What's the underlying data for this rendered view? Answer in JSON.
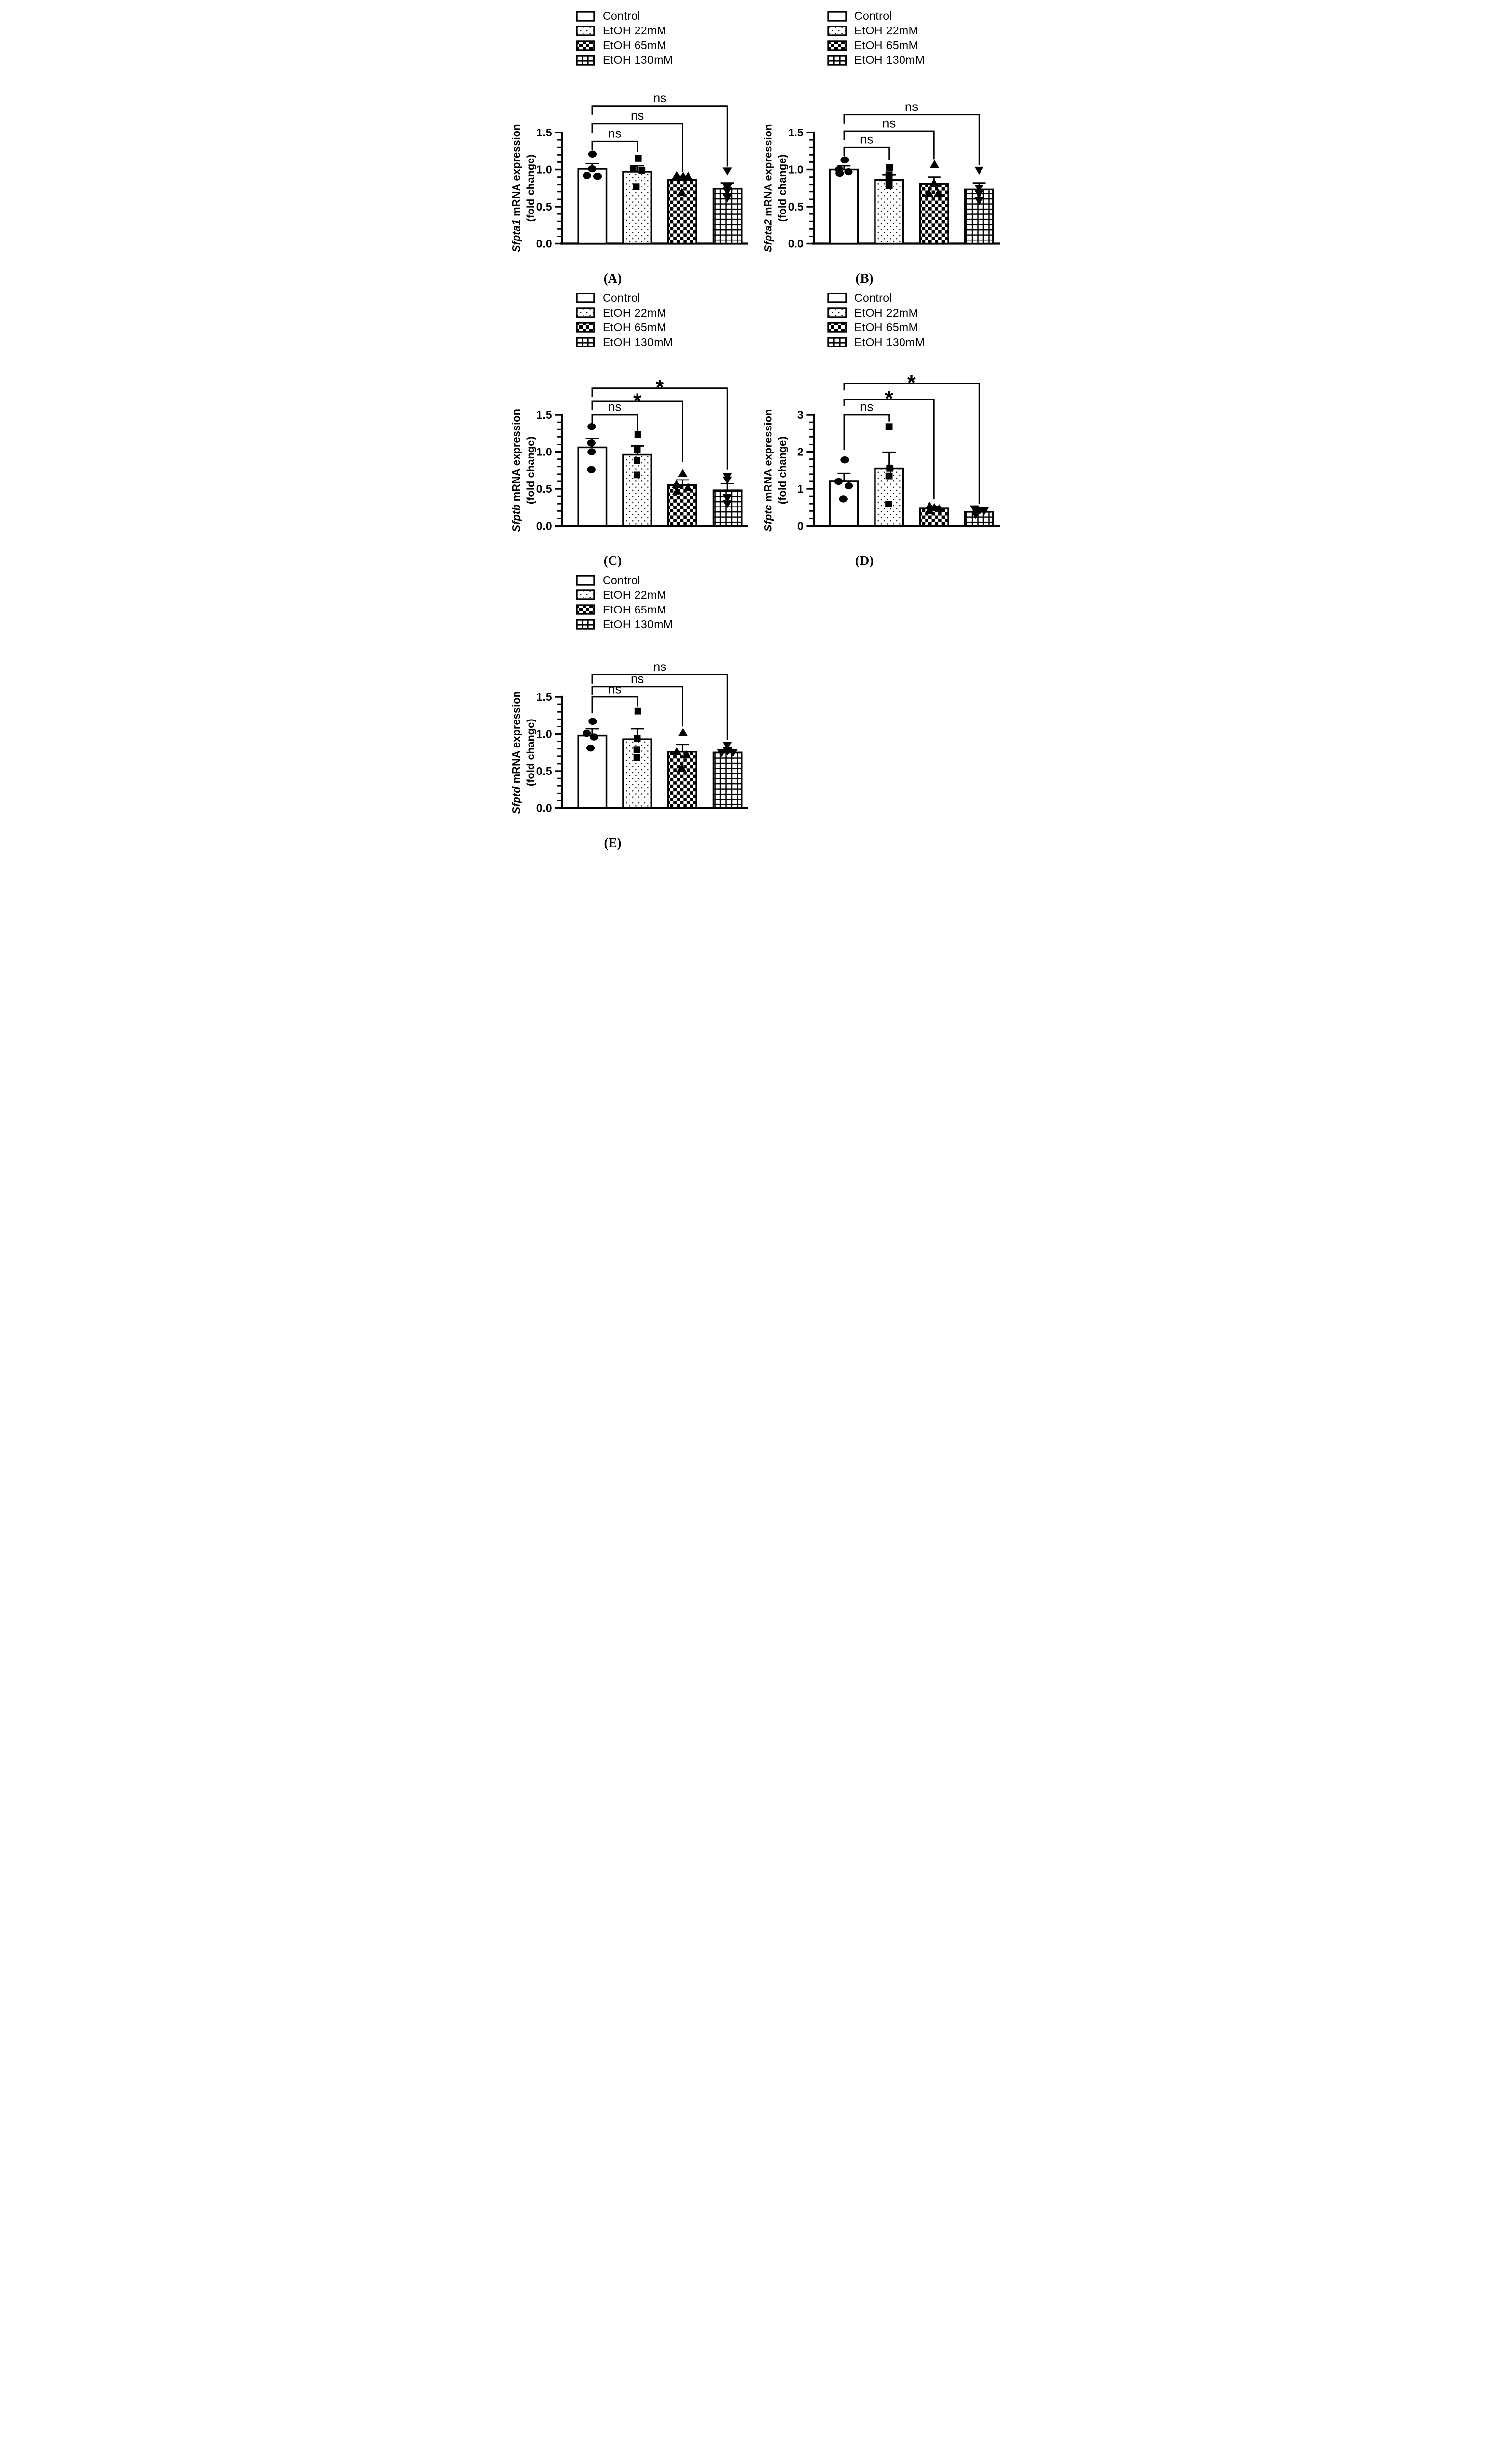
{
  "page": {
    "background": "#ffffff",
    "ink": "#000000"
  },
  "chart_data": [
    {
      "id": "A",
      "caption": "(A)",
      "type": "bar",
      "ylabel_gene": "Sfpta1",
      "ylabel_text": " mRNA expression",
      "ylabel_line2": "(fold change)",
      "ymax": 1.5,
      "ymajor": 0.5,
      "yminor": 0.1,
      "ytick_labels": [
        "0.0",
        "0.5",
        "1.0",
        "1.5"
      ],
      "categories": [
        "Control",
        "EtOH 22mM",
        "EtOH 65mM",
        "EtOH 130mM"
      ],
      "patterns": [
        "open",
        "dots",
        "checker",
        "grid"
      ],
      "markers": [
        "circle",
        "square",
        "triangle-up",
        "triangle-down"
      ],
      "means": [
        1.01,
        0.97,
        0.86,
        0.74
      ],
      "sem_tops": [
        1.08,
        1.05,
        0.91,
        0.82
      ],
      "points": [
        [
          [
            1.21,
            0.02
          ],
          [
            1.01,
            0
          ],
          [
            0.92,
            -0.4
          ],
          [
            0.91,
            0.4
          ]
        ],
        [
          [
            1.15,
            0.08
          ],
          [
            1.01,
            -0.33
          ],
          [
            0.99,
            0.36
          ],
          [
            0.77,
            -0.08
          ]
        ],
        [
          [
            0.92,
            -0.42
          ],
          [
            0.91,
            0.05
          ],
          [
            0.91,
            0.44
          ],
          [
            0.69,
            -0.05
          ]
        ],
        [
          [
            0.98,
            0
          ],
          [
            0.76,
            0
          ],
          [
            0.71,
            0
          ],
          [
            0.62,
            0
          ]
        ]
      ],
      "brackets": [
        {
          "label": "ns",
          "to": 1,
          "level": 1.38,
          "left_end": 1.26,
          "right_end": 1.24
        },
        {
          "label": "ns",
          "to": 2,
          "level": 1.62,
          "left_end": 1.5,
          "right_end": 0.97
        },
        {
          "label": "ns",
          "to": 3,
          "level": 1.86,
          "left_end": 1.74,
          "right_end": 1.04
        }
      ]
    },
    {
      "id": "B",
      "caption": "(B)",
      "type": "bar",
      "ylabel_gene": "Sfpta2",
      "ylabel_text": " mRNA expression",
      "ylabel_line2": "(fold change)",
      "ymax": 1.5,
      "ymajor": 0.5,
      "yminor": 0.1,
      "ytick_labels": [
        "0.0",
        "0.5",
        "1.0",
        "1.5"
      ],
      "categories": [
        "Control",
        "EtOH 22mM",
        "EtOH 65mM",
        "EtOH 130mM"
      ],
      "patterns": [
        "open",
        "dots",
        "checker",
        "grid"
      ],
      "markers": [
        "circle",
        "square",
        "triangle-up",
        "triangle-down"
      ],
      "means": [
        1.0,
        0.86,
        0.81,
        0.73
      ],
      "sem_tops": [
        1.05,
        0.93,
        0.9,
        0.82
      ],
      "points": [
        [
          [
            1.13,
            0.04
          ],
          [
            1.0,
            -0.38
          ],
          [
            0.95,
            -0.34
          ],
          [
            0.97,
            0.34
          ]
        ],
        [
          [
            1.03,
            0.05
          ],
          [
            0.93,
            0
          ],
          [
            0.86,
            0
          ],
          [
            0.78,
            0
          ]
        ],
        [
          [
            1.07,
            0.04
          ],
          [
            0.82,
            0
          ],
          [
            0.68,
            -0.4
          ],
          [
            0.68,
            0.34
          ]
        ],
        [
          [
            0.99,
            0
          ],
          [
            0.75,
            0
          ],
          [
            0.67,
            0
          ],
          [
            0.58,
            0
          ]
        ]
      ],
      "brackets": [
        {
          "label": "ns",
          "to": 1,
          "level": 1.3,
          "left_end": 1.18,
          "right_end": 1.13
        },
        {
          "label": "ns",
          "to": 2,
          "level": 1.52,
          "left_end": 1.4,
          "right_end": 1.14
        },
        {
          "label": "ns",
          "to": 3,
          "level": 1.74,
          "left_end": 1.62,
          "right_end": 1.06
        }
      ]
    },
    {
      "id": "C",
      "caption": "(C)",
      "type": "bar",
      "ylabel_gene": "Sfptb",
      "ylabel_text": " mRNA expression",
      "ylabel_line2": "(fold change)",
      "ymax": 1.5,
      "ymajor": 0.5,
      "yminor": 0.1,
      "ytick_labels": [
        "0.0",
        "0.5",
        "1.0",
        "1.5"
      ],
      "categories": [
        "Control",
        "EtOH 22mM",
        "EtOH 65mM",
        "EtOH 130mM"
      ],
      "patterns": [
        "open",
        "dots",
        "checker",
        "grid"
      ],
      "markers": [
        "circle",
        "square",
        "triangle-up",
        "triangle-down"
      ],
      "means": [
        1.06,
        0.96,
        0.55,
        0.48
      ],
      "sem_tops": [
        1.18,
        1.08,
        0.62,
        0.57
      ],
      "points": [
        [
          [
            1.34,
            -0.04
          ],
          [
            1.12,
            -0.06
          ],
          [
            1.0,
            -0.04
          ],
          [
            0.76,
            -0.06
          ]
        ],
        [
          [
            1.23,
            0.04
          ],
          [
            1.03,
            0
          ],
          [
            0.88,
            -0.02
          ],
          [
            0.69,
            -0.02
          ]
        ],
        [
          [
            0.71,
            0.02
          ],
          [
            0.56,
            -0.44
          ],
          [
            0.52,
            0.42
          ],
          [
            0.47,
            -0.4
          ]
        ],
        [
          [
            0.67,
            0
          ],
          [
            0.62,
            0
          ],
          [
            0.38,
            0
          ],
          [
            0.3,
            0
          ]
        ]
      ],
      "brackets": [
        {
          "label": "ns",
          "to": 1,
          "level": 1.5,
          "left_end": 1.34,
          "right_end": 1.27
        },
        {
          "label": "*",
          "to": 2,
          "level": 1.68,
          "left_end": 1.56,
          "right_end": 0.86
        },
        {
          "label": "*",
          "to": 3,
          "level": 1.86,
          "left_end": 1.74,
          "right_end": 0.76
        }
      ]
    },
    {
      "id": "D",
      "caption": "(D)",
      "type": "bar",
      "ylabel_gene": "Sfptc",
      "ylabel_text": " mRNA expression",
      "ylabel_line2": "(fold change)",
      "ymax": 3,
      "ymajor": 1,
      "yminor": 0.2,
      "ytick_labels": [
        "0",
        "1",
        "2",
        "3"
      ],
      "categories": [
        "Control",
        "EtOH 22mM",
        "EtOH 65mM",
        "EtOH 130mM"
      ],
      "patterns": [
        "open",
        "dots",
        "checker",
        "grid"
      ],
      "markers": [
        "circle",
        "square",
        "triangle-up",
        "triangle-down"
      ],
      "means": [
        1.2,
        1.55,
        0.47,
        0.38
      ],
      "sem_tops": [
        1.42,
        1.99,
        0.52,
        0.42
      ],
      "points": [
        [
          [
            1.78,
            0.04
          ],
          [
            1.2,
            -0.42
          ],
          [
            1.08,
            0.36
          ],
          [
            0.73,
            -0.06
          ]
        ],
        [
          [
            2.68,
            0
          ],
          [
            1.56,
            0.06
          ],
          [
            1.35,
            0
          ],
          [
            0.59,
            -0.02
          ]
        ],
        [
          [
            0.54,
            -0.34
          ],
          [
            0.5,
            0.02
          ],
          [
            0.47,
            0.4
          ],
          [
            0.42,
            -0.36
          ]
        ],
        [
          [
            0.46,
            -0.36
          ],
          [
            0.42,
            0.04
          ],
          [
            0.41,
            0.4
          ],
          [
            0.31,
            -0.28
          ]
        ]
      ],
      "brackets": [
        {
          "label": "ns",
          "to": 1,
          "level": 3.0,
          "left_end": 2.05,
          "right_end": 2.82
        },
        {
          "label": "*",
          "to": 2,
          "level": 3.42,
          "left_end": 3.24,
          "right_end": 0.72
        },
        {
          "label": "*",
          "to": 3,
          "level": 3.84,
          "left_end": 3.66,
          "right_end": 0.6
        }
      ]
    },
    {
      "id": "E",
      "caption": "(E)",
      "type": "bar",
      "ylabel_gene": "Sfptd",
      "ylabel_text": " mRNA expression",
      "ylabel_line2": "(fold change)",
      "ymax": 1.5,
      "ymajor": 0.5,
      "yminor": 0.1,
      "ytick_labels": [
        "0.0",
        "0.5",
        "1.0",
        "1.5"
      ],
      "categories": [
        "Control",
        "EtOH 22mM",
        "EtOH 65mM",
        "EtOH 130mM"
      ],
      "patterns": [
        "open",
        "dots",
        "checker",
        "grid"
      ],
      "markers": [
        "circle",
        "square",
        "triangle-up",
        "triangle-down"
      ],
      "means": [
        0.98,
        0.93,
        0.76,
        0.75
      ],
      "sem_tops": [
        1.07,
        1.07,
        0.86,
        0.79
      ],
      "points": [
        [
          [
            1.17,
            0.04
          ],
          [
            1.01,
            -0.42
          ],
          [
            0.96,
            0.14
          ],
          [
            0.81,
            -0.12
          ]
        ],
        [
          [
            1.31,
            0.04
          ],
          [
            0.94,
            0
          ],
          [
            0.79,
            -0.04
          ],
          [
            0.68,
            -0.04
          ]
        ],
        [
          [
            1.02,
            0.04
          ],
          [
            0.76,
            -0.42
          ],
          [
            0.72,
            0.32
          ],
          [
            0.54,
            -0.06
          ]
        ],
        [
          [
            0.85,
            0
          ],
          [
            0.77,
            0.02
          ],
          [
            0.75,
            -0.42
          ],
          [
            0.75,
            0.42
          ]
        ]
      ],
      "brackets": [
        {
          "label": "ns",
          "to": 1,
          "level": 1.5,
          "left_end": 1.28,
          "right_end": 1.37
        },
        {
          "label": "ns",
          "to": 2,
          "level": 1.64,
          "left_end": 1.52,
          "right_end": 1.1
        },
        {
          "label": "ns",
          "to": 3,
          "level": 1.8,
          "left_end": 1.68,
          "right_end": 0.92
        }
      ]
    }
  ]
}
